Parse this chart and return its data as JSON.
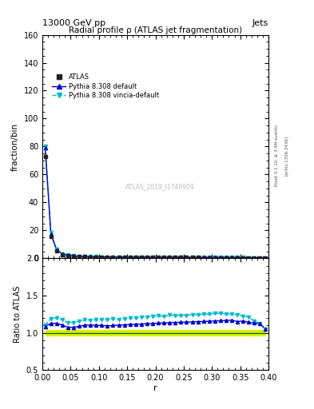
{
  "title_top": "13000 GeV pp",
  "title_right": "Jets",
  "title_main": "Radial profile ρ (ATLAS jet fragmentation)",
  "watermark": "ATLAS_2019_I1740909",
  "ylabel_main": "fraction/bin",
  "ylabel_ratio": "Ratio to ATLAS",
  "xlabel": "r",
  "right_label": "Rivet 3.1.10, ≥ 3.4M events",
  "right_label2": "[arXiv:1306.3436]",
  "main_ylim": [
    0,
    160
  ],
  "main_yticks": [
    0,
    20,
    40,
    60,
    80,
    100,
    120,
    140,
    160
  ],
  "ratio_ylim": [
    0.5,
    2.0
  ],
  "ratio_yticks": [
    0.5,
    1.0,
    1.5,
    2.0
  ],
  "xlim": [
    0.0,
    0.4
  ],
  "r_centers": [
    0.005,
    0.015,
    0.025,
    0.035,
    0.045,
    0.055,
    0.065,
    0.075,
    0.085,
    0.095,
    0.105,
    0.115,
    0.125,
    0.135,
    0.145,
    0.155,
    0.165,
    0.175,
    0.185,
    0.195,
    0.205,
    0.215,
    0.225,
    0.235,
    0.245,
    0.255,
    0.265,
    0.275,
    0.285,
    0.295,
    0.305,
    0.315,
    0.325,
    0.335,
    0.345,
    0.355,
    0.365,
    0.375,
    0.385,
    0.395
  ],
  "atlas_values": [
    73.0,
    15.5,
    5.5,
    2.8,
    2.0,
    1.6,
    1.35,
    1.15,
    1.05,
    0.97,
    0.9,
    0.85,
    0.8,
    0.77,
    0.74,
    0.71,
    0.69,
    0.67,
    0.65,
    0.63,
    0.61,
    0.6,
    0.58,
    0.57,
    0.56,
    0.55,
    0.54,
    0.53,
    0.52,
    0.51,
    0.5,
    0.49,
    0.48,
    0.47,
    0.46,
    0.44,
    0.42,
    0.38,
    0.32,
    0.22
  ],
  "atlas_errors": [
    1.5,
    0.4,
    0.15,
    0.08,
    0.06,
    0.05,
    0.04,
    0.04,
    0.03,
    0.03,
    0.03,
    0.03,
    0.03,
    0.03,
    0.03,
    0.03,
    0.03,
    0.03,
    0.03,
    0.03,
    0.03,
    0.03,
    0.03,
    0.03,
    0.03,
    0.03,
    0.03,
    0.03,
    0.03,
    0.03,
    0.03,
    0.03,
    0.03,
    0.03,
    0.03,
    0.03,
    0.03,
    0.03,
    0.03,
    0.03
  ],
  "pythia_default_values": [
    79.0,
    17.5,
    6.2,
    3.1,
    2.15,
    1.72,
    1.47,
    1.27,
    1.16,
    1.07,
    0.99,
    0.93,
    0.88,
    0.85,
    0.82,
    0.79,
    0.77,
    0.75,
    0.73,
    0.71,
    0.69,
    0.68,
    0.66,
    0.65,
    0.64,
    0.63,
    0.62,
    0.61,
    0.6,
    0.59,
    0.58,
    0.57,
    0.56,
    0.55,
    0.53,
    0.51,
    0.48,
    0.43,
    0.36,
    0.23
  ],
  "pythia_vincia_values": [
    80.5,
    18.5,
    6.6,
    3.3,
    2.28,
    1.82,
    1.56,
    1.35,
    1.23,
    1.14,
    1.06,
    1.0,
    0.95,
    0.91,
    0.88,
    0.85,
    0.83,
    0.81,
    0.79,
    0.77,
    0.75,
    0.73,
    0.72,
    0.7,
    0.69,
    0.68,
    0.67,
    0.66,
    0.65,
    0.64,
    0.63,
    0.62,
    0.6,
    0.59,
    0.57,
    0.54,
    0.51,
    0.44,
    0.36,
    0.23
  ],
  "ratio_band_low": 0.96,
  "ratio_band_high": 1.04,
  "ratio_band_green_low": 0.985,
  "ratio_band_green_high": 1.015,
  "color_atlas": "#222222",
  "color_pythia_default": "#0000cc",
  "color_pythia_vincia": "#00bbcc",
  "color_band_green": "#aaee00",
  "color_band_yellow": "#eeee00",
  "legend_entries": [
    "ATLAS",
    "Pythia 8.308 default",
    "Pythia 8.308 vincia-default"
  ]
}
